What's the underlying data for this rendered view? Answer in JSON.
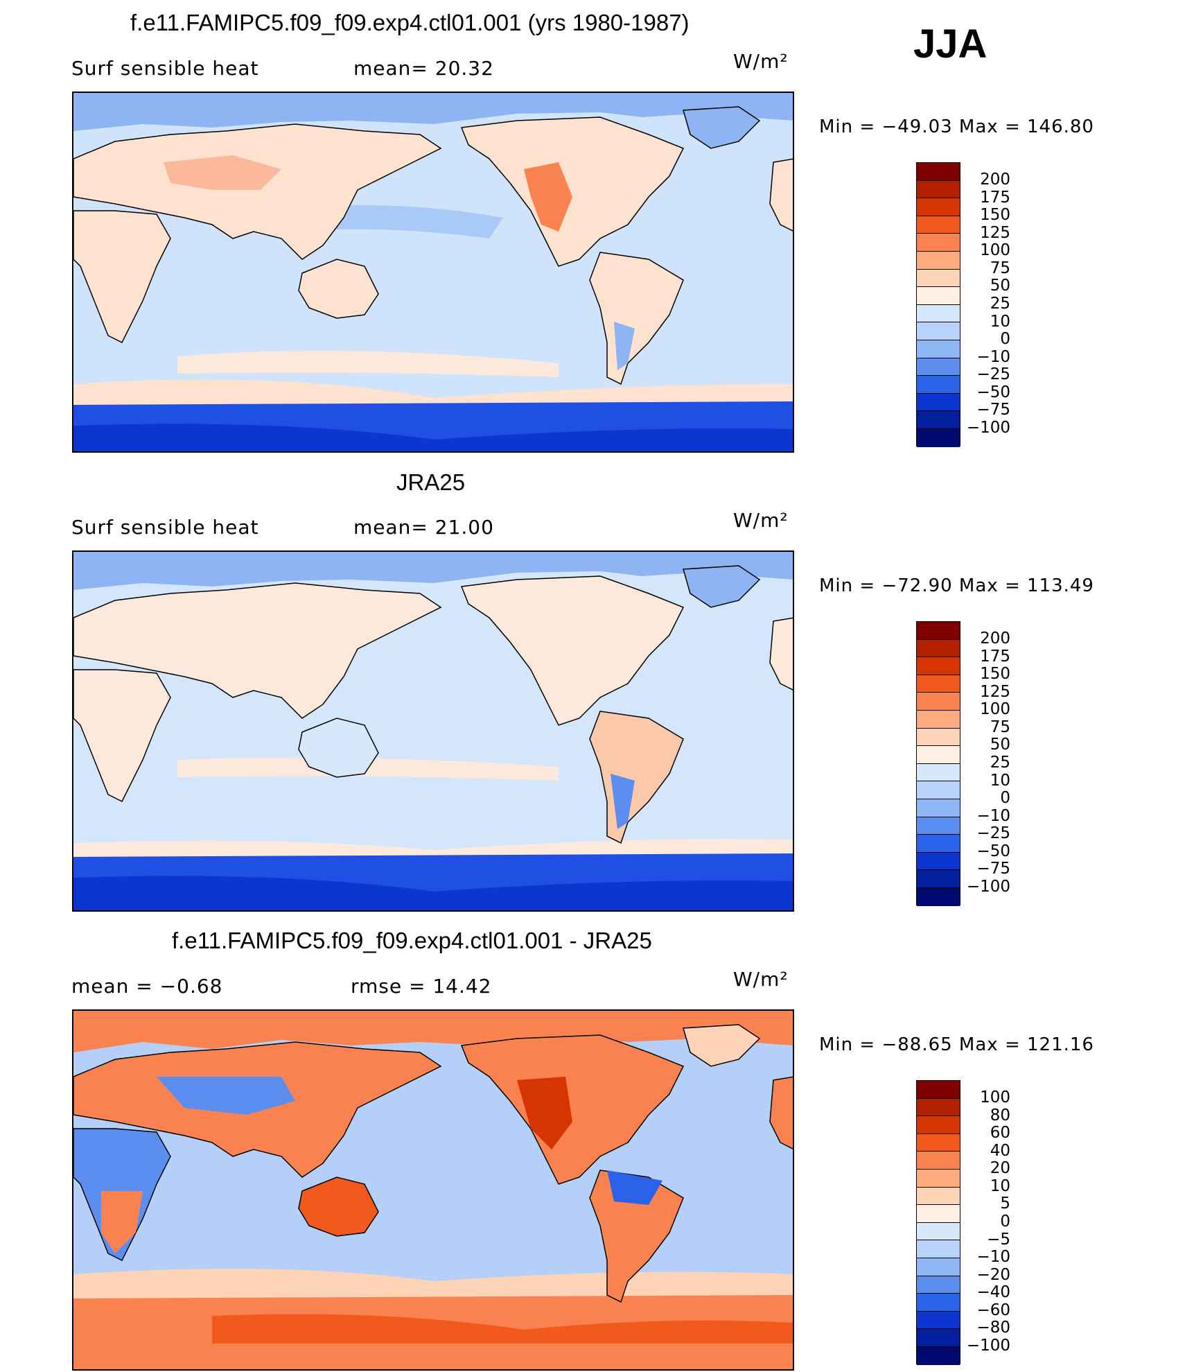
{
  "season": "JJA",
  "units": "W/m²",
  "panels": [
    {
      "id": "model",
      "title": "f.e11.FAMIPC5.f09_f09.exp4.ctl01.001 (yrs 1980-1987)",
      "left_label": "Surf  sensible  heat",
      "center_label": "mean=   20.32",
      "units": "W/m²",
      "minmax": "Min  =  −49.03  Max  =  146.80",
      "colorbar_ticks": [
        "200",
        "175",
        "150",
        "125",
        "100",
        "75",
        "50",
        "25",
        "10",
        "0",
        "−10",
        "−25",
        "−50",
        "−75",
        "−100"
      ]
    },
    {
      "id": "obs",
      "title": "JRA25",
      "left_label": "Surf  sensible  heat",
      "center_label": "mean=   21.00",
      "units": "W/m²",
      "minmax": "Min  =  −72.90  Max  =  113.49",
      "colorbar_ticks": [
        "200",
        "175",
        "150",
        "125",
        "100",
        "75",
        "50",
        "25",
        "10",
        "0",
        "−10",
        "−25",
        "−50",
        "−75",
        "−100"
      ]
    },
    {
      "id": "diff",
      "title": "f.e11.FAMIPC5.f09_f09.exp4.ctl01.001 - JRA25",
      "left_label": "mean  =     −0.68",
      "center_label": "rmse  =     14.42",
      "units": "W/m²",
      "minmax": "Min  =  −88.65  Max  =  121.16",
      "colorbar_ticks": [
        "100",
        "80",
        "60",
        "40",
        "20",
        "10",
        "5",
        "0",
        "−5",
        "−10",
        "−20",
        "−40",
        "−60",
        "−80",
        "−100"
      ]
    }
  ],
  "colors": {
    "colorbar": [
      "#7f0000",
      "#b22000",
      "#d63400",
      "#f25a1d",
      "#f98250",
      "#fcaa7e",
      "#fdd3b8",
      "#fdf0e2",
      "#d7e8fb",
      "#b8d3f9",
      "#8fb6f5",
      "#5c8ef0",
      "#2b62ea",
      "#0d35d0",
      "#041f9e",
      "#000a6e"
    ],
    "ocean_model": "#cfe3fb",
    "ocean_obs": "#d4e6fb",
    "ocean_diff": "#b4cff8",
    "land_model": "#fde2cf",
    "land_obs": "#fde9dc",
    "land_diff": "#f9a27a",
    "antarctic": "#1f4fe3",
    "arctic": "#8fb4f4"
  }
}
